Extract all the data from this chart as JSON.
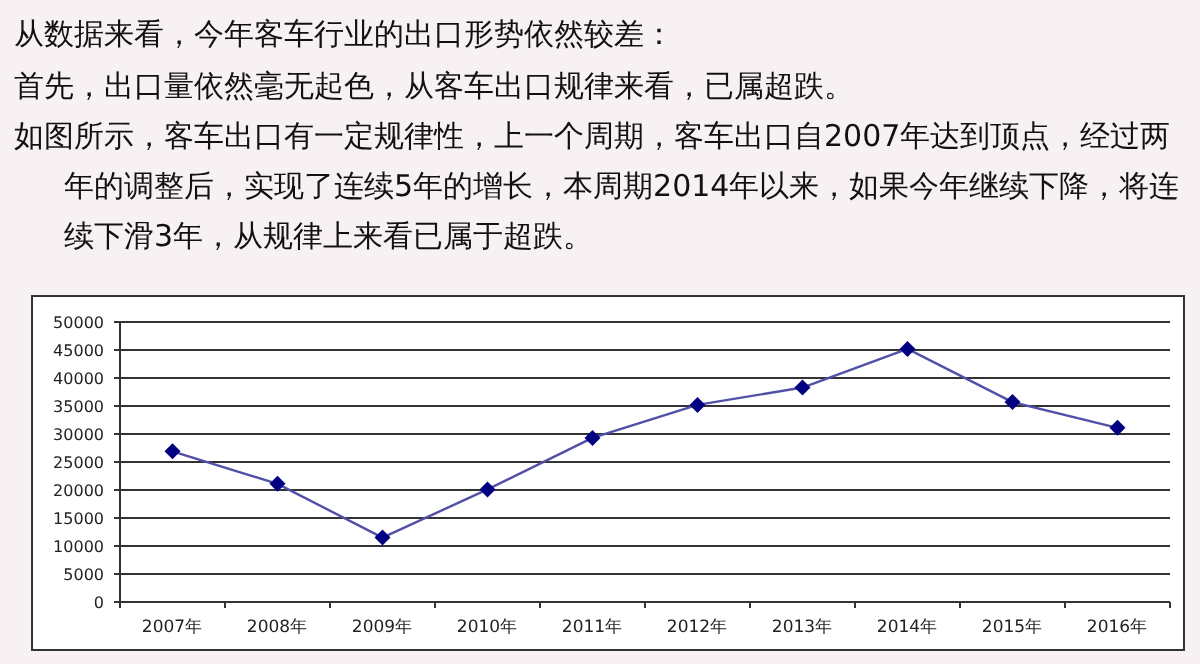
{
  "chart_data": {
    "type": "line",
    "title": "从数据来看，今年客车行业的出口形势依然较差：",
    "annotations": [
      "首先，出口量依然毫无起色，从客车出口规律来看，已属超跌。",
      "如图所示，客车出口有一定规律性，上一个周期，客车出口自2007年达到顶点，经过两年的调整后，实现了连续5年的增长，本周期2014年以来，如果今年继续下降，将连续下滑3年，从规律上来看已属于超跌。"
    ],
    "categories": [
      "2007年",
      "2008年",
      "2009年",
      "2010年",
      "2011年",
      "2012年",
      "2013年",
      "2014年",
      "2015年",
      "2016年"
    ],
    "series": [
      {
        "color": "#5050a8",
        "values": [
          26900,
          21100,
          11500,
          20100,
          29300,
          35200,
          38300,
          45200,
          35700,
          31100
        ]
      }
    ],
    "ylim": [
      0,
      50000
    ],
    "yticks": [
      0,
      5000,
      10000,
      15000,
      20000,
      25000,
      30000,
      35000,
      40000,
      45000,
      50000
    ],
    "grid": "y",
    "marker": "diamond"
  }
}
